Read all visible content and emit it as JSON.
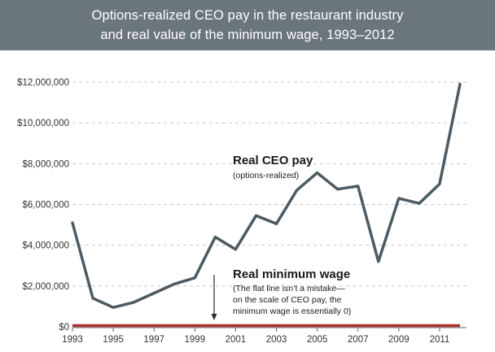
{
  "header": {
    "title_line1": "Options-realized CEO pay in the restaurant industry",
    "title_line2": "and real value of the minimum wage, 1993–2012"
  },
  "chart_data": {
    "type": "line",
    "title": "Options-realized CEO pay in the restaurant industry and real value of the minimum wage, 1993–2012",
    "xlabel": "",
    "ylabel": "",
    "x": [
      1993,
      1994,
      1995,
      1996,
      1997,
      1998,
      1999,
      2000,
      2001,
      2002,
      2003,
      2004,
      2005,
      2006,
      2007,
      2008,
      2009,
      2010,
      2011,
      2012
    ],
    "xlim": [
      1993,
      2012
    ],
    "ylim": [
      0,
      12000000
    ],
    "y_ticks": [
      0,
      2000000,
      4000000,
      6000000,
      8000000,
      10000000,
      12000000
    ],
    "y_tick_labels": [
      "$0",
      "$2,000,000",
      "$4,000,000",
      "$6,000,000",
      "$8,000,000",
      "$10,000,000",
      "$12,000,000"
    ],
    "x_ticks": [
      1993,
      1995,
      1997,
      1999,
      2001,
      2003,
      2005,
      2007,
      2009,
      2011
    ],
    "x_tick_labels": [
      "1993",
      "1995",
      "1997",
      "1999",
      "2001",
      "2003",
      "2005",
      "2007",
      "2009",
      "2011"
    ],
    "grid": "horizontal-dashed",
    "colors": {
      "ceo": "#4d5a62",
      "wage": "#a8322f",
      "arrow": "#2a2a2a",
      "grid": "#c8c8c8"
    },
    "series": [
      {
        "name": "Real CEO pay",
        "values": [
          5100000,
          1400000,
          950000,
          1200000,
          1650000,
          2100000,
          2400000,
          4400000,
          3800000,
          5450000,
          5050000,
          6700000,
          7550000,
          6750000,
          6900000,
          3200000,
          6300000,
          6050000,
          7000000,
          11900000
        ]
      },
      {
        "name": "Real minimum wage",
        "values": [
          0,
          0,
          0,
          0,
          0,
          0,
          0,
          0,
          0,
          0,
          0,
          0,
          0,
          0,
          0,
          0,
          0,
          0,
          0,
          0
        ]
      }
    ],
    "annotations": {
      "ceo_title": "Real CEO pay",
      "ceo_sub": "(options-realized)",
      "wage_title": "Real minimum wage",
      "wage_note_1": "(The flat line isn’t a mistake—",
      "wage_note_2": "on the scale of CEO pay, the",
      "wage_note_3": "minimum wage is essentially 0)"
    }
  }
}
